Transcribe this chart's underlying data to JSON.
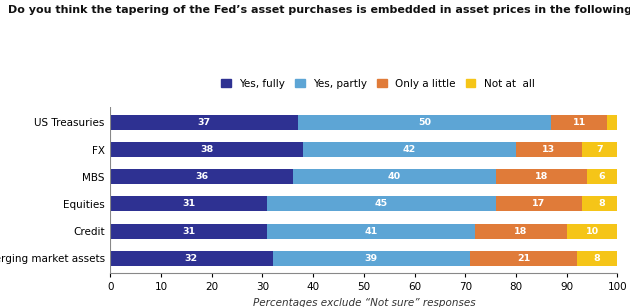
{
  "title": "Do you think the tapering of the Fed’s asset purchases is embedded in asset prices in the following markets?",
  "categories": [
    "US Treasuries",
    "FX",
    "MBS",
    "Equities",
    "Credit",
    "Emerging market assets"
  ],
  "series": [
    {
      "label": "Yes, fully",
      "color": "#2E3192",
      "values": [
        37,
        38,
        36,
        31,
        31,
        32
      ]
    },
    {
      "label": "Yes, partly",
      "color": "#5DA5D5",
      "values": [
        50,
        42,
        40,
        45,
        41,
        39
      ]
    },
    {
      "label": "Only a little",
      "color": "#E07B39",
      "values": [
        11,
        13,
        18,
        17,
        18,
        21
      ]
    },
    {
      "label": "Not at  all",
      "color": "#F5C518",
      "values": [
        2,
        7,
        6,
        8,
        10,
        8
      ]
    }
  ],
  "xlabel": "Percentages exclude “Not sure” responses",
  "xlim": [
    0,
    100
  ],
  "xticks": [
    0,
    10,
    20,
    30,
    40,
    50,
    60,
    70,
    80,
    90,
    100
  ],
  "bar_height": 0.55,
  "background_color": "#FFFFFF",
  "title_fontsize": 8.0,
  "label_fontsize": 7.5,
  "tick_fontsize": 7.5,
  "legend_fontsize": 7.5,
  "value_fontsize": 6.8
}
